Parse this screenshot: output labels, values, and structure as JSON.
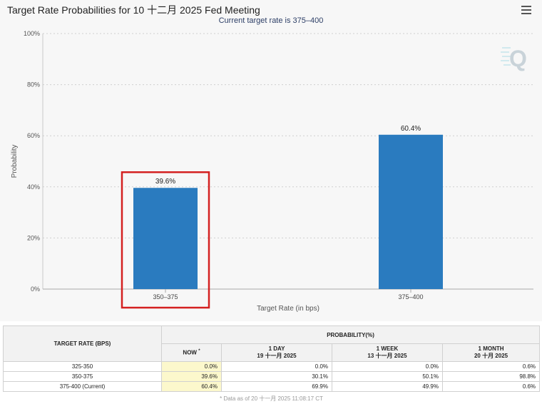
{
  "chart_title": "Target Rate Probabilities for 10 十二月 2025 Fed Meeting",
  "chart_subtitle": "Current target rate is 375–400",
  "colors": {
    "bar": "#2a7bbf",
    "highlight": "#d42020",
    "now_cell": "#fcf8cc"
  },
  "icons": {
    "menu": "hamburger-menu-icon",
    "logo": "q-logo-icon"
  },
  "chart_data": {
    "type": "bar",
    "title": "Target Rate Probabilities for 10 十二月 2025 Fed Meeting",
    "subtitle": "Current target rate is 375–400",
    "categories": [
      "350–375",
      "375–400"
    ],
    "values": [
      39.6,
      60.4
    ],
    "data_labels": [
      "39.6%",
      "60.4%"
    ],
    "xlabel": "Target Rate (in bps)",
    "ylabel": "Probability",
    "ylim": [
      0,
      100
    ],
    "yticks": [
      0,
      20,
      40,
      60,
      80,
      100
    ],
    "ytick_labels": [
      "0%",
      "20%",
      "40%",
      "60%",
      "80%",
      "100%"
    ],
    "grid": true,
    "highlighted_category": "350–375"
  },
  "table": {
    "target_rate_header": "TARGET RATE (BPS)",
    "probability_header": "PROBABILITY(%)",
    "now_header": "NOW",
    "now_marker": "*",
    "day_header": "1 DAY",
    "day_date": "19 十一月 2025",
    "week_header": "1 WEEK",
    "week_date": "13 十一月 2025",
    "month_header": "1 MONTH",
    "month_date": "20 十月 2025",
    "rows": [
      {
        "rate": "325-350",
        "now": "0.0%",
        "day": "0.0%",
        "week": "0.0%",
        "month": "0.6%"
      },
      {
        "rate": "350-375",
        "now": "39.6%",
        "day": "30.1%",
        "week": "50.1%",
        "month": "98.8%"
      },
      {
        "rate": "375-400 (Current)",
        "now": "60.4%",
        "day": "69.9%",
        "week": "49.9%",
        "month": "0.6%"
      }
    ],
    "footnote": "* Data as of 20 十一月 2025 11:08:17 CT"
  }
}
